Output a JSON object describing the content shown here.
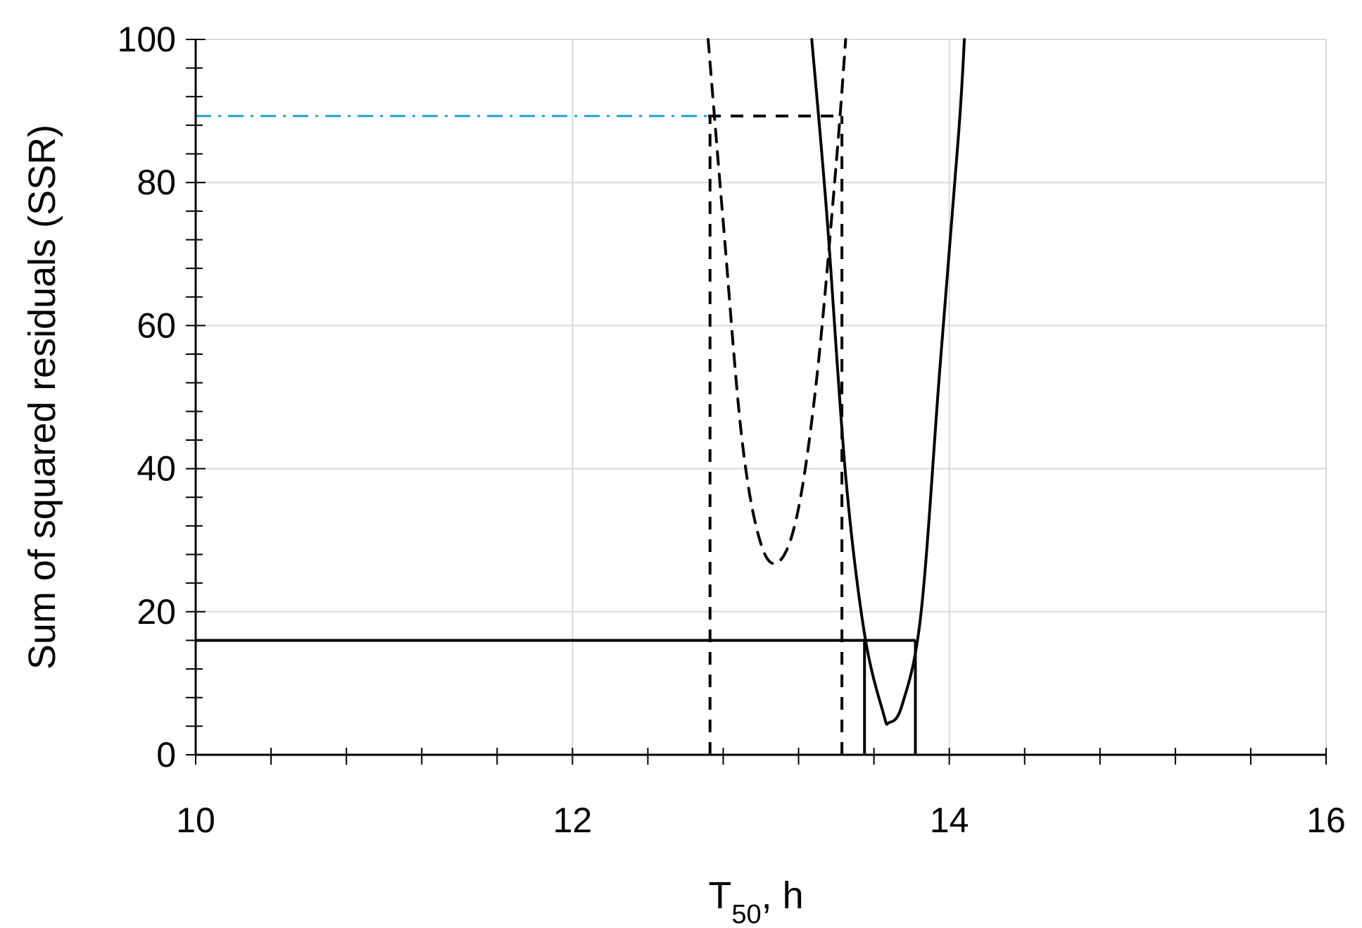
{
  "chart_data": {
    "type": "line",
    "title": "",
    "xlabel": {
      "main": "T",
      "subscript": "50",
      "suffix": ", h"
    },
    "ylabel": "Sum of squared residuals (SSR)",
    "xlim": [
      10,
      16
    ],
    "ylim": [
      0,
      100
    ],
    "x_ticks": [
      10,
      12,
      14,
      16
    ],
    "y_ticks": [
      0,
      20,
      40,
      60,
      80,
      100
    ],
    "x_tick_labels": [
      "10",
      "12",
      "14",
      "16"
    ],
    "y_tick_labels": [
      "0",
      "20",
      "40",
      "60",
      "80",
      "100"
    ],
    "grid": true,
    "legend": "none",
    "colors": {
      "curve": "#000000",
      "grid": "#d9d9d9",
      "axis": "#000000",
      "blue_threshold": "#1fa1d8"
    },
    "series": [
      {
        "style": "dashed",
        "x": [
          12.72,
          12.8,
          12.9,
          13.0,
          13.1,
          13.2,
          13.3,
          13.4,
          13.45
        ],
        "y": [
          100.0,
          74.5,
          44.0,
          29.5,
          27.1,
          34.5,
          53.5,
          82.7,
          100.0
        ]
      },
      {
        "style": "solid",
        "x": [
          13.27,
          13.35,
          13.45,
          13.55,
          13.65,
          13.68,
          13.75,
          13.85,
          13.95,
          14.05,
          14.08
        ],
        "y": [
          100.0,
          75.5,
          39.0,
          16.9,
          5.8,
          4.5,
          7.0,
          19.8,
          54.0,
          87.0,
          100.0
        ]
      }
    ],
    "reference_lines": [
      {
        "style": "dash-dot-blue",
        "orientation": "horizontal",
        "y": 89.3,
        "x_from": 10,
        "x_to": 12.72
      },
      {
        "style": "dashed",
        "orientation": "horizontal",
        "y": 89.3,
        "x_from": 12.72,
        "x_to": 13.42
      },
      {
        "style": "dashed",
        "orientation": "vertical",
        "x": 12.73,
        "y_from": 0,
        "y_to": 89.3
      },
      {
        "style": "dashed",
        "orientation": "vertical",
        "x": 13.43,
        "y_from": 0,
        "y_to": 89.3
      },
      {
        "style": "solid",
        "orientation": "horizontal",
        "y": 16,
        "x_from": 10,
        "x_to": 13.82
      },
      {
        "style": "solid",
        "orientation": "vertical",
        "x": 13.55,
        "y_from": 0,
        "y_to": 16
      },
      {
        "style": "solid",
        "orientation": "vertical",
        "x": 13.82,
        "y_from": 0,
        "y_to": 16
      }
    ]
  }
}
